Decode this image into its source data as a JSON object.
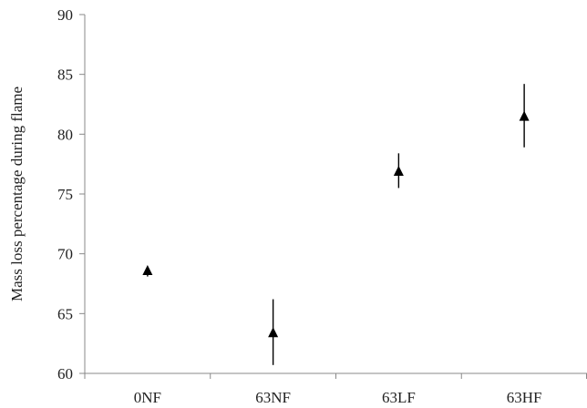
{
  "chart_data": {
    "type": "scatter",
    "title": "",
    "xlabel": "",
    "ylabel": "Mass loss percentage during flame",
    "categories": [
      "0NF",
      "63NF",
      "63LF",
      "63HF"
    ],
    "series": [
      {
        "marker": "triangle",
        "color": "#000000",
        "values": [
          68.6,
          63.4,
          76.9,
          81.5
        ],
        "err_low": [
          68.1,
          60.7,
          75.5,
          78.9
        ],
        "err_high": [
          68.9,
          66.2,
          78.4,
          84.2
        ]
      }
    ],
    "ylim": [
      60,
      90
    ],
    "yticks": [
      60,
      65,
      70,
      75,
      80,
      85,
      90
    ],
    "grid": false,
    "legend": "none"
  }
}
